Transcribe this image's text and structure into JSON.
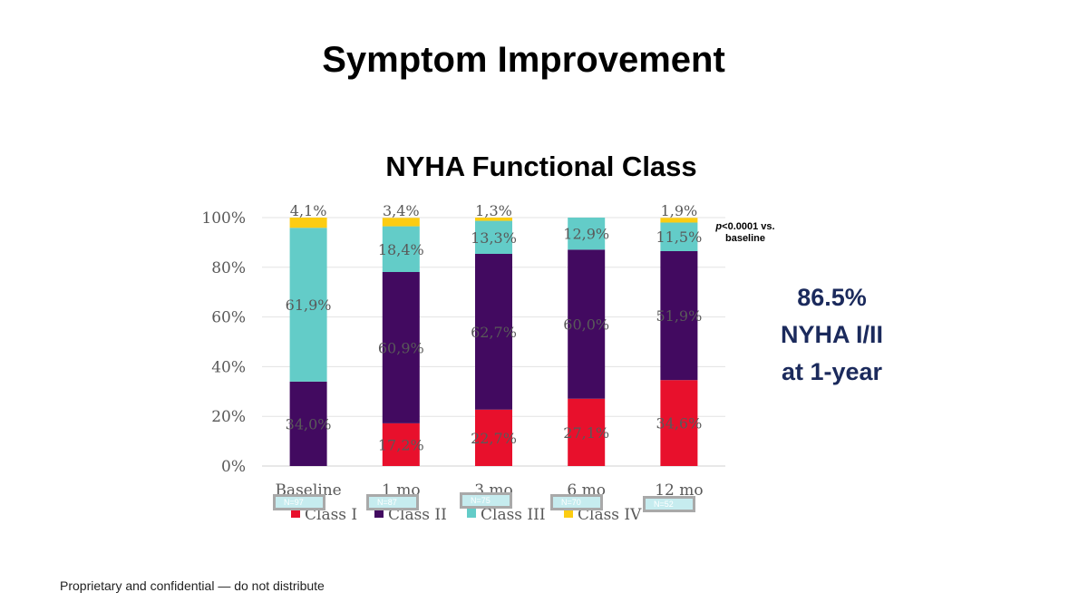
{
  "slide_title": "Symptom Improvement",
  "footer": "Proprietary and confidential — do not distribute",
  "callout": {
    "line1": "86.5%",
    "line2": "NYHA I/II",
    "line3": "at 1-year"
  },
  "pvalue": {
    "p": "p",
    "rest": "<0.0001 vs.",
    "line2": "baseline"
  },
  "n_labels": [
    "N=97",
    "N=87",
    "N=75",
    "N=70",
    "N=52"
  ],
  "chart_data": {
    "type": "bar",
    "stacked": true,
    "title": "NYHA Functional Class",
    "categories": [
      "Baseline",
      "1 mo",
      "3 mo",
      "6 mo",
      "12 mo"
    ],
    "yticks": [
      "0%",
      "20%",
      "40%",
      "60%",
      "80%",
      "100%"
    ],
    "ylim": [
      0,
      100
    ],
    "grid": true,
    "legend_position": "bottom",
    "series": [
      {
        "name": "Class I",
        "color": "#e8102c",
        "values": [
          0,
          17.2,
          22.7,
          27.1,
          34.6
        ],
        "labels": [
          "",
          "17,2%",
          "22,7%",
          "27,1%",
          "34,6%"
        ]
      },
      {
        "name": "Class II",
        "color": "#420a60",
        "values": [
          34.0,
          60.9,
          62.7,
          60.0,
          51.9
        ],
        "labels": [
          "34,0%",
          "60,9%",
          "62,7%",
          "60,0%",
          "51,9%"
        ]
      },
      {
        "name": "Class III",
        "color": "#63ccc8",
        "values": [
          61.9,
          18.4,
          13.3,
          12.9,
          11.5
        ],
        "labels": [
          "61,9%",
          "18,4%",
          "13,3%",
          "12,9%",
          "11,5%"
        ]
      },
      {
        "name": "Class IV",
        "color": "#fccc12",
        "values": [
          4.1,
          3.4,
          1.3,
          0,
          1.9
        ],
        "labels": [
          "4,1%",
          "3,4%",
          "1,3%",
          "",
          "1,9%"
        ]
      }
    ]
  }
}
